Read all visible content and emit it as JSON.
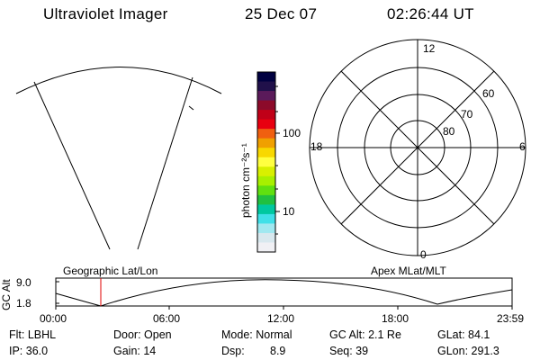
{
  "header": {
    "instrument": "Ultraviolet Imager",
    "date": "25 Dec 07",
    "time": "02:26:44 UT"
  },
  "colorbar": {
    "unit_label": "photon cm⁻²s⁻¹",
    "tick_100": "100",
    "tick_10": "10",
    "colors": [
      "#000040",
      "#20104a",
      "#5a1a5a",
      "#8c0a2a",
      "#c00018",
      "#e80010",
      "#f06010",
      "#f0a000",
      "#f8d800",
      "#ffff40",
      "#d8f000",
      "#a8f000",
      "#60e010",
      "#20c040",
      "#00c8a0",
      "#40e0e8",
      "#a0e8f0",
      "#d8e8ee",
      "#f0f0f4"
    ]
  },
  "polar_grid": {
    "mlt_labels": {
      "top": "12",
      "left": "18",
      "right": "6",
      "bottom": "0"
    },
    "lat_labels": [
      "60",
      "70",
      "80"
    ]
  },
  "timeline": {
    "left_title": "Geographic Lat/Lon",
    "right_title": "Apex MLat/MLT",
    "y_title": "GC Alt",
    "y_max": "9.0",
    "y_min": "1.8",
    "x_ticks": [
      "00:00",
      "06:00",
      "12:00",
      "18:00",
      "23:59"
    ],
    "marker_color": "#e00000"
  },
  "info": {
    "flt": "Flt: LBHL",
    "ip": "IP: 36.0",
    "door": "Door: Open",
    "gain": "Gain: 14",
    "mode": "Mode: Normal",
    "dsp_label": "Dsp:",
    "dsp_value": "8.9",
    "gc_alt": "GC Alt: 2.1 Re",
    "seq": "Seq: 39",
    "glat": "GLat:  84.1",
    "glon": "GLon: 291.3"
  }
}
